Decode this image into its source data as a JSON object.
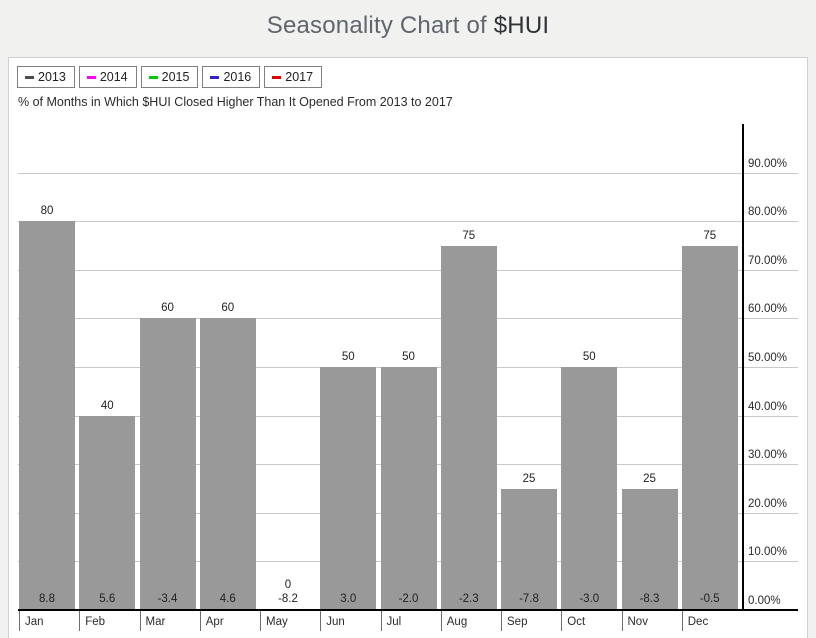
{
  "page": {
    "title_prefix": "Seasonality Chart of ",
    "title_symbol": "$HUI"
  },
  "legend": {
    "items": [
      {
        "year": "2013",
        "color": "#4d4d4d"
      },
      {
        "year": "2014",
        "color": "#ff00ff"
      },
      {
        "year": "2015",
        "color": "#00cc00"
      },
      {
        "year": "2016",
        "color": "#3322cc"
      },
      {
        "year": "2017",
        "color": "#e60000"
      }
    ]
  },
  "chart_data": {
    "type": "bar",
    "title": "% of Months in Which $HUI Closed Higher Than It Opened From 2013 to 2017",
    "categories": [
      "Jan",
      "Feb",
      "Mar",
      "Apr",
      "May",
      "Jun",
      "Jul",
      "Aug",
      "Sep",
      "Oct",
      "Nov",
      "Dec"
    ],
    "values": [
      80,
      40,
      60,
      60,
      0,
      50,
      50,
      75,
      25,
      50,
      25,
      75
    ],
    "footer_values": [
      "8.8",
      "5.6",
      "-3.4",
      "4.6",
      "-8.2",
      "3.0",
      "-2.0",
      "-2.3",
      "-7.8",
      "-3.0",
      "-8.3",
      "-0.5"
    ],
    "y_ticks": [
      "0.00%",
      "10.00%",
      "20.00%",
      "30.00%",
      "40.00%",
      "50.00%",
      "60.00%",
      "70.00%",
      "80.00%",
      "90.00%"
    ],
    "y_tick_step": 10,
    "ylim": [
      0,
      100
    ],
    "xlabel": "",
    "ylabel": "",
    "bar_color": "#999999",
    "grid": true,
    "y_axis_side": "right",
    "legend_position": "top-left"
  }
}
